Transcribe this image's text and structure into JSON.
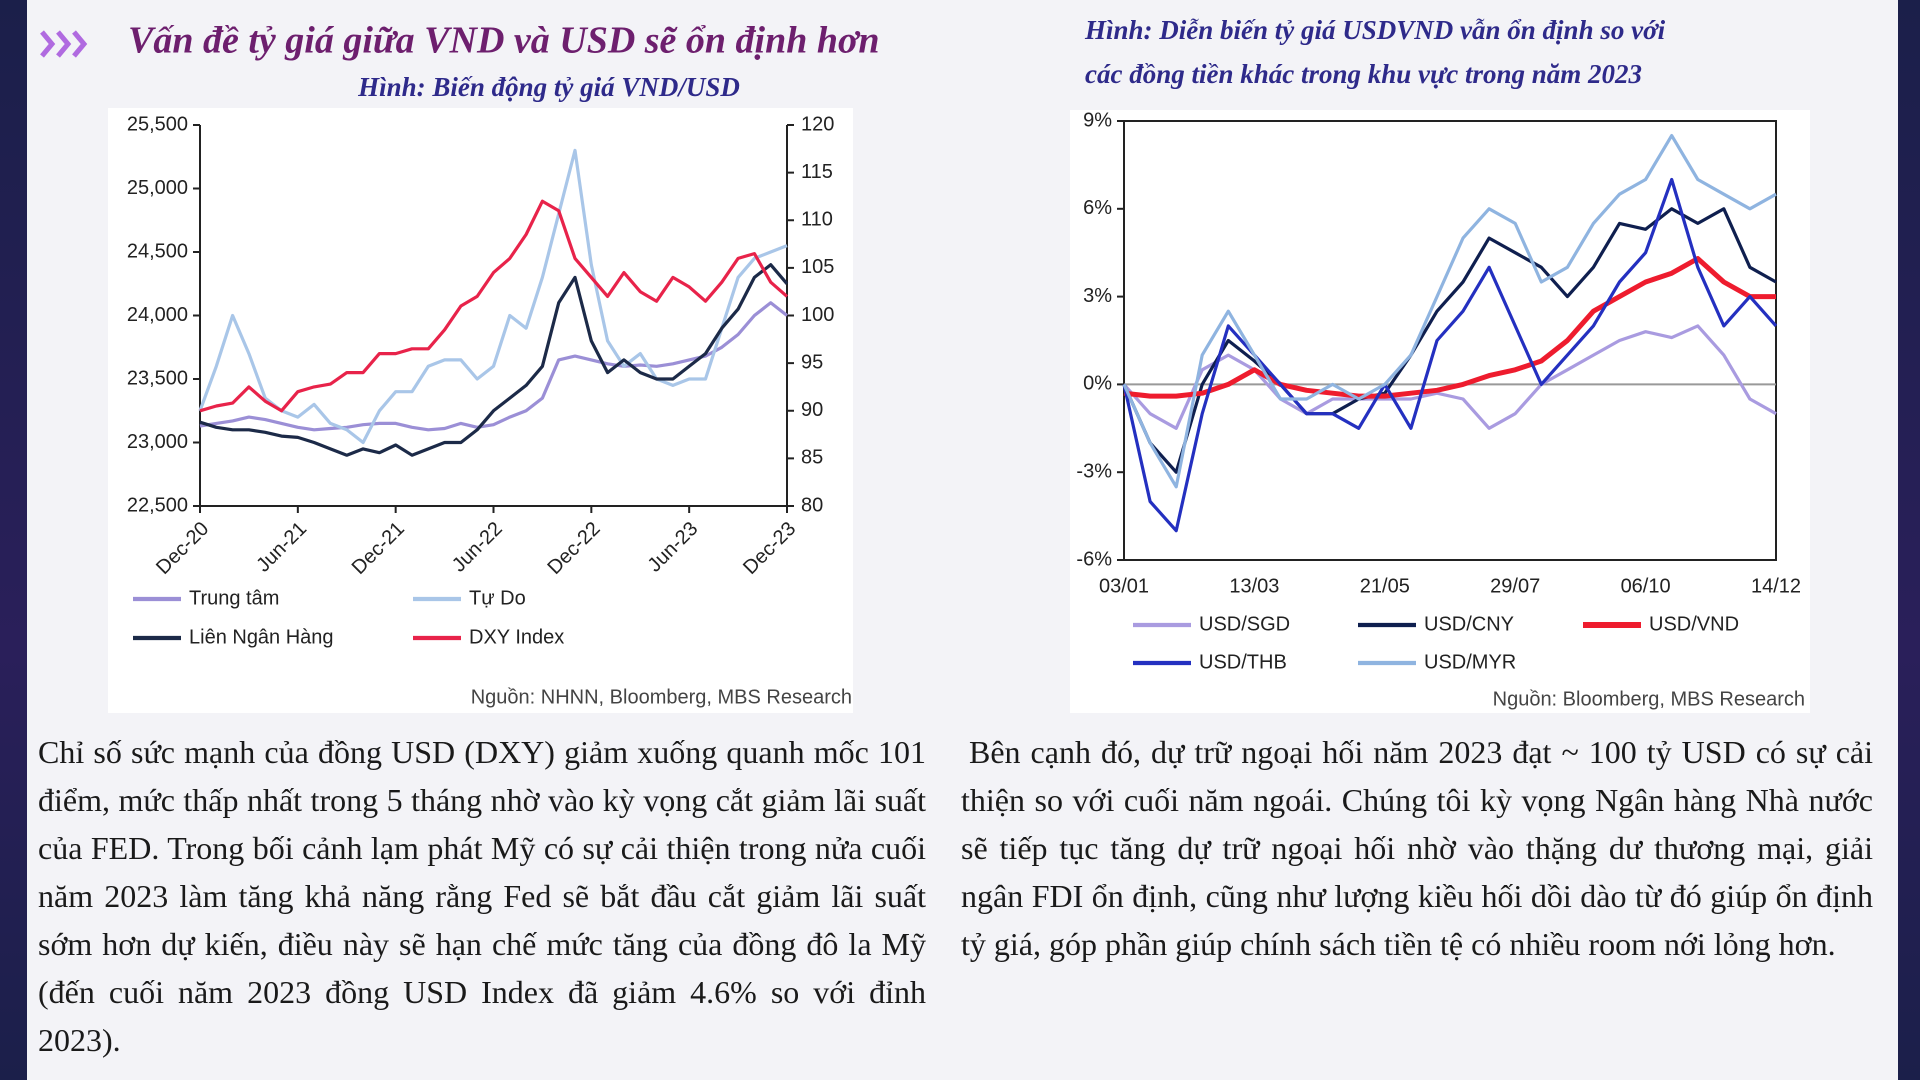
{
  "header": {
    "title": "Vấn đề tỷ giá giữa VND và USD sẽ ổn định hơn"
  },
  "chart_data": [
    {
      "type": "line",
      "title_lines": [
        "Hình: Biến động tỷ giá VND/USD"
      ],
      "categories": [
        "Dec-20",
        null,
        null,
        null,
        null,
        null,
        "Jun-21",
        null,
        null,
        null,
        null,
        null,
        "Dec-21",
        null,
        null,
        null,
        null,
        null,
        "Jun-22",
        null,
        null,
        null,
        null,
        null,
        "Dec-22",
        null,
        null,
        null,
        null,
        null,
        "Jun-23",
        null,
        null,
        null,
        null,
        null,
        "Dec-23"
      ],
      "ylim": [
        22500,
        25500
      ],
      "yticks": [
        {
          "value": 22500,
          "label": "22,500"
        },
        {
          "value": 23000,
          "label": "23,000"
        },
        {
          "value": 23500,
          "label": "23,500"
        },
        {
          "value": 24000,
          "label": "24,000"
        },
        {
          "value": 24500,
          "label": "24,500"
        },
        {
          "value": 25000,
          "label": "25,000"
        },
        {
          "value": 25500,
          "label": "25,500"
        }
      ],
      "y2lim": [
        80,
        120
      ],
      "y2ticks": [
        80,
        85,
        90,
        95,
        100,
        105,
        110,
        115,
        120
      ],
      "series": [
        {
          "name": "Trung tâm",
          "color": "#9b8fd6",
          "values": [
            23130,
            23150,
            23170,
            23200,
            23180,
            23150,
            23120,
            23100,
            23110,
            23120,
            23140,
            23150,
            23150,
            23120,
            23100,
            23110,
            23150,
            23120,
            23140,
            23200,
            23250,
            23350,
            23650,
            23680,
            23650,
            23620,
            23600,
            23610,
            23600,
            23620,
            23650,
            23680,
            23750,
            23850,
            24000,
            24100,
            24000
          ]
        },
        {
          "name": "Tự Do",
          "color": "#a9c6e8",
          "values": [
            23250,
            23600,
            24000,
            23700,
            23350,
            23250,
            23200,
            23300,
            23150,
            23100,
            23000,
            23250,
            23400,
            23400,
            23600,
            23650,
            23650,
            23500,
            23600,
            24000,
            23900,
            24300,
            24800,
            25300,
            24400,
            23800,
            23600,
            23700,
            23500,
            23450,
            23500,
            23500,
            23900,
            24300,
            24450,
            24500,
            24550
          ]
        },
        {
          "name": "Liên Ngân Hàng",
          "color": "#1c2a48",
          "values": [
            23160,
            23120,
            23100,
            23100,
            23080,
            23050,
            23040,
            23000,
            22950,
            22900,
            22950,
            22920,
            22980,
            22900,
            22950,
            23000,
            23000,
            23100,
            23250,
            23350,
            23450,
            23600,
            24100,
            24300,
            23800,
            23550,
            23650,
            23550,
            23500,
            23500,
            23600,
            23700,
            23900,
            24050,
            24300,
            24400,
            24250
          ]
        },
        {
          "name": "DXY Index",
          "color": "#e8234a",
          "axis": "y2",
          "values": [
            90,
            90.5,
            90.8,
            92.5,
            91,
            90,
            92,
            92.5,
            92.8,
            94,
            94,
            96,
            96,
            96.5,
            96.5,
            98.5,
            101,
            102,
            104.5,
            106,
            108.5,
            112,
            111,
            106,
            104,
            102,
            104.5,
            102.5,
            101.5,
            104,
            103,
            101.5,
            103.5,
            106,
            106.5,
            103.5,
            102
          ]
        }
      ],
      "source": "Nguồn: NHNN, Bloomberg, MBS Research"
    },
    {
      "type": "line",
      "title_lines": [
        "Hình: Diễn biến tỷ giá USDVND vẫn ổn định so với",
        "các đồng tiền khác trong khu vực trong năm 2023"
      ],
      "categories": [
        "03/01",
        null,
        null,
        null,
        null,
        "13/03",
        null,
        null,
        null,
        null,
        "21/05",
        null,
        null,
        null,
        null,
        "29/07",
        null,
        null,
        null,
        null,
        "06/10",
        null,
        null,
        null,
        null,
        "14/12"
      ],
      "ylim": [
        -6,
        9
      ],
      "yticks": [
        {
          "value": -6,
          "label": "-6%"
        },
        {
          "value": -3,
          "label": "-3%"
        },
        {
          "value": 0,
          "label": "0%"
        },
        {
          "value": 3,
          "label": "3%"
        },
        {
          "value": 6,
          "label": "6%"
        },
        {
          "value": 9,
          "label": "9%"
        }
      ],
      "series": [
        {
          "name": "USD/SGD",
          "color": "#a99be0",
          "values": [
            0,
            -1,
            -1.5,
            0.5,
            1,
            0.5,
            -0.5,
            -1,
            -0.5,
            -0.5,
            -0.5,
            -0.5,
            -0.3,
            -0.5,
            -1.5,
            -1,
            0,
            0.5,
            1,
            1.5,
            1.8,
            1.6,
            2,
            1,
            -0.5,
            -1
          ]
        },
        {
          "name": "USD/CNY",
          "color": "#0f1f4f",
          "values": [
            0,
            -2,
            -3,
            0,
            1.5,
            0.8,
            0,
            -1,
            -1,
            -0.5,
            -0.3,
            1,
            2.5,
            3.5,
            5,
            4.5,
            4,
            3,
            4,
            5.5,
            5.3,
            6,
            5.5,
            6,
            4,
            3.5
          ]
        },
        {
          "name": "USD/VND",
          "color": "#ee1c2e",
          "values": [
            -0.3,
            -0.4,
            -0.4,
            -0.3,
            0,
            0.5,
            0,
            -0.2,
            -0.3,
            -0.4,
            -0.4,
            -0.3,
            -0.2,
            0,
            0.3,
            0.5,
            0.8,
            1.5,
            2.5,
            3,
            3.5,
            3.8,
            4.3,
            3.5,
            3,
            3
          ]
        },
        {
          "name": "USD/THB",
          "color": "#2430c0",
          "values": [
            0,
            -4,
            -5,
            -1,
            2,
            1,
            0,
            -1,
            -1,
            -1.5,
            0,
            -1.5,
            1.5,
            2.5,
            4,
            2,
            0,
            1,
            2,
            3.5,
            4.5,
            7,
            4,
            2,
            3,
            2
          ]
        },
        {
          "name": "USD/MYR",
          "color": "#8fb4e0",
          "values": [
            0,
            -2,
            -3.5,
            1,
            2.5,
            1,
            -0.5,
            -0.5,
            0,
            -0.5,
            0,
            1,
            3,
            5,
            6,
            5.5,
            3.5,
            4,
            5.5,
            6.5,
            7,
            8.5,
            7,
            6.5,
            6,
            6.5
          ]
        }
      ],
      "source": "Nguồn: Bloomberg, MBS Research"
    }
  ],
  "paragraphs": [
    "Chỉ số sức mạnh của đồng USD (DXY) giảm xuống quanh mốc 101 điểm, mức thấp nhất trong 5 tháng nhờ vào kỳ vọng cắt giảm lãi suất của FED. Trong bối cảnh lạm phát Mỹ có sự cải thiện trong nửa cuối năm 2023 làm tăng khả năng rằng Fed sẽ bắt đầu cắt giảm lãi suất sớm hơn dự kiến, điều này sẽ hạn chế mức tăng của đồng đô la Mỹ (đến cuối năm 2023 đồng USD Index đã giảm 4.6% so với đỉnh 2023).",
    "Bên cạnh đó, dự trữ ngoại hối năm 2023 đạt ~ 100 tỷ USD có sự cải thiện so với cuối năm ngoái. Chúng tôi kỳ vọng Ngân hàng Nhà nước sẽ tiếp tục tăng dự trữ ngoại hối nhờ vào thặng dư thương mại, giải ngân FDI ổn định, cũng như lượng kiều hối dồi dào từ đó giúp ổn định tỷ giá, góp phần giúp chính sách tiền tệ có nhiều room nới lỏng hơn."
  ]
}
